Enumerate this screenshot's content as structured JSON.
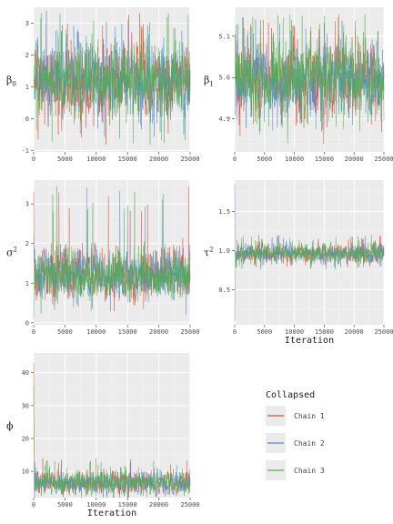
{
  "legend": {
    "title": "Collapsed",
    "entries": [
      {
        "name": "Chain 1",
        "color": "#E24A33"
      },
      {
        "name": "Chain 2",
        "color": "#4C8BD1"
      },
      {
        "name": "Chain 3",
        "color": "#4DB14A"
      }
    ]
  },
  "chart_data": [
    {
      "type": "line",
      "ylabel": "β",
      "ylabel_sub": "0",
      "xlabel": "",
      "xlim": [
        0,
        25000
      ],
      "xticks": [
        0,
        5000,
        10000,
        15000,
        20000,
        25000
      ],
      "xtick_labels": [
        "0",
        "5000",
        "10000",
        "15000",
        "20000",
        "25000"
      ],
      "ylim": [
        -1.05,
        3.5
      ],
      "yticks": [
        -1,
        0,
        1,
        2,
        3
      ],
      "ytick_labels": [
        "-1",
        "0",
        "1",
        "2",
        "3"
      ],
      "center": 1.2,
      "spread": 0.55,
      "peak_max": 3.4,
      "peak_min": -0.85,
      "init": [
        1.2,
        1.2,
        1.2
      ],
      "grid": true
    },
    {
      "type": "line",
      "ylabel": "β",
      "ylabel_sub": "1",
      "xlabel": "",
      "xlim": [
        0,
        25000
      ],
      "xticks": [
        0,
        5000,
        10000,
        15000,
        20000,
        25000
      ],
      "xtick_labels": [
        "0",
        "5000",
        "10000",
        "15000",
        "20000",
        "25000"
      ],
      "ylim": [
        4.82,
        5.17
      ],
      "yticks": [
        4.9,
        5.0,
        5.1
      ],
      "ytick_labels": [
        "4.9",
        "5.0",
        "5.1"
      ],
      "center": 4.995,
      "spread": 0.042,
      "peak_max": 5.155,
      "peak_min": 4.86,
      "init": [
        5.0,
        5.0,
        5.0
      ],
      "grid": true
    },
    {
      "type": "line",
      "ylabel": "σ",
      "ylabel_sup": "2",
      "xlabel": "",
      "xlim": [
        0,
        25000
      ],
      "xticks": [
        0,
        5000,
        10000,
        15000,
        20000,
        25000
      ],
      "xtick_labels": [
        "0",
        "5000",
        "10000",
        "15000",
        "20000",
        "25000"
      ],
      "ylim": [
        -0.05,
        3.6
      ],
      "yticks": [
        0,
        1,
        2,
        3
      ],
      "ytick_labels": [
        "0",
        "1",
        "2",
        "3"
      ],
      "center": 1.2,
      "spread": 0.3,
      "peak_max": 3.45,
      "peak_min": 0.6,
      "init": [
        3.3,
        2.2,
        0.1
      ],
      "grid": true
    },
    {
      "type": "line",
      "ylabel": "τ",
      "ylabel_sup": "2",
      "xlabel": "Iteration",
      "xlim": [
        0,
        25000
      ],
      "xticks": [
        0,
        5000,
        10000,
        15000,
        20000,
        25000
      ],
      "xtick_labels": [
        "0",
        "5000",
        "10000",
        "15000",
        "20000",
        "25000"
      ],
      "ylim": [
        0.05,
        1.9
      ],
      "yticks": [
        0.5,
        1.0,
        1.5
      ],
      "ytick_labels": [
        "0.5",
        "1.0",
        "1.5"
      ],
      "center": 0.96,
      "spread": 0.055,
      "peak_max": 1.2,
      "peak_min": 0.75,
      "init": [
        1.0,
        1.85,
        0.1
      ],
      "grid": true
    },
    {
      "type": "line",
      "ylabel": "ϕ",
      "xlabel": "Iteration",
      "xlim": [
        0,
        25000
      ],
      "xticks": [
        0,
        5000,
        10000,
        15000,
        20000,
        25000
      ],
      "xtick_labels": [
        "0",
        "5000",
        "10000",
        "15000",
        "20000",
        "25000"
      ],
      "ylim": [
        2,
        46
      ],
      "yticks": [
        10,
        20,
        30,
        40
      ],
      "ytick_labels": [
        "10",
        "20",
        "30",
        "40"
      ],
      "center": 6.5,
      "spread": 1.6,
      "peak_max": 14,
      "peak_min": 3.5,
      "init": [
        43,
        8,
        36
      ],
      "grid": true
    }
  ]
}
